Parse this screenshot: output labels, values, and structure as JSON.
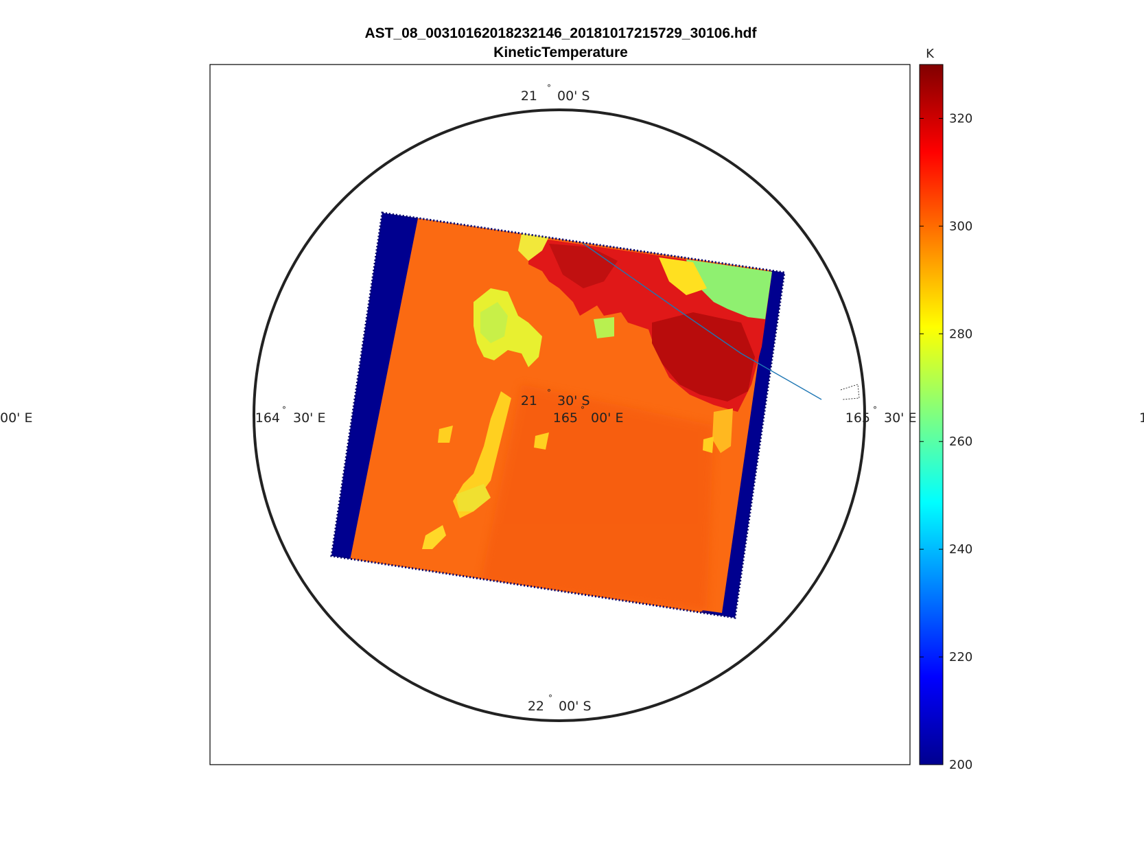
{
  "title": "AST_08_00310162018232146_20181017215729_30106.hdf",
  "subtitle": "KineticTemperature",
  "colorbar": {
    "unit": "K",
    "min": 200,
    "max": 330,
    "ticks": [
      "200",
      "220",
      "240",
      "260",
      "280",
      "300",
      "320"
    ],
    "colormap": "jet"
  },
  "graticule": {
    "top_lat": {
      "deg": "21",
      "min": "00' S"
    },
    "center_lat": {
      "deg": "21",
      "min": "30' S"
    },
    "bottom_lat": {
      "deg": "22",
      "min": "00' S"
    },
    "left_lon": {
      "deg": "164",
      "min": "30' E"
    },
    "center_lon": {
      "deg": "165",
      "min": "00' E"
    },
    "right_lon": {
      "deg": "165",
      "min": "30' E"
    },
    "far_left_fragment": "00' E",
    "far_right_fragment": "1"
  },
  "colors": {
    "background_fill": "#00008f",
    "ocean": "#fb6a12",
    "land_hot": "#c81010",
    "cloud": "#c8ff40",
    "coastline": "#1f77b4",
    "frame": "#000000"
  }
}
